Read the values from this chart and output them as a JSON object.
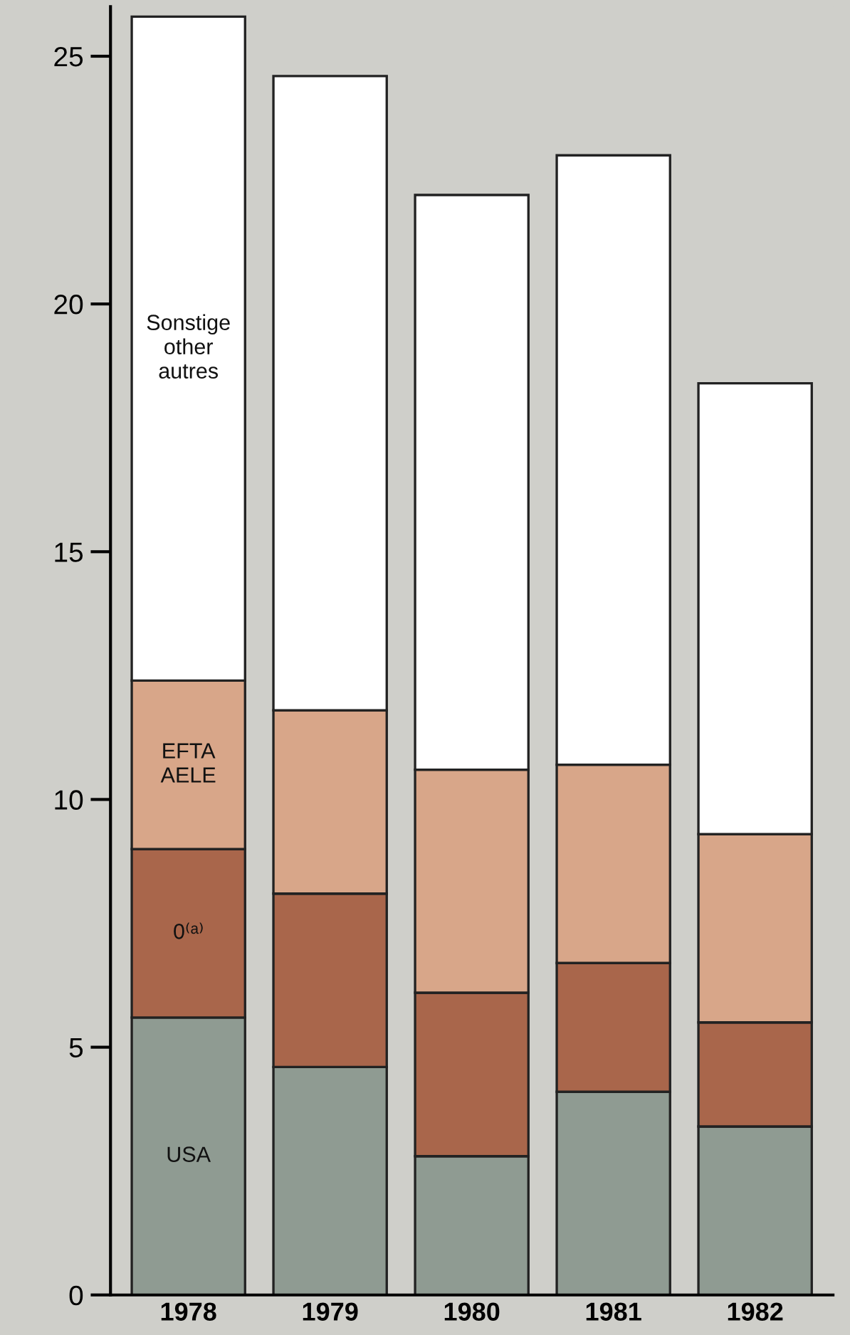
{
  "chart_data": {
    "type": "bar",
    "stacked": true,
    "categories": [
      "1978",
      "1979",
      "1980",
      "1981",
      "1982"
    ],
    "series": [
      {
        "name": "USA",
        "color": "#8f9b92",
        "values": [
          5.6,
          4.6,
          2.8,
          4.1,
          3.4
        ]
      },
      {
        "name": "0⁽ᵃ⁾",
        "color": "#a9664b",
        "values": [
          3.4,
          3.5,
          3.3,
          2.6,
          2.1
        ]
      },
      {
        "name": "EFTA\nAELE",
        "color": "#d8a689",
        "values": [
          3.4,
          3.7,
          4.5,
          4.0,
          3.8
        ]
      },
      {
        "name": "Sonstige\nother\nautres",
        "color": "#ffffff",
        "values": [
          13.4,
          12.8,
          11.6,
          12.3,
          9.1
        ]
      }
    ],
    "ylim": [
      0,
      26
    ],
    "yticks": [
      0,
      5,
      10,
      15,
      20,
      25
    ],
    "grid": false
  }
}
